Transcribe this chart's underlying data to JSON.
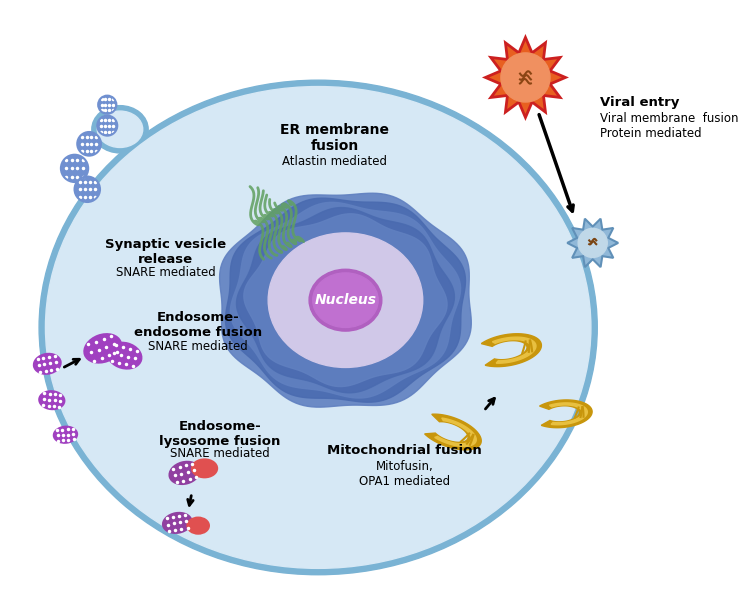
{
  "cell_color": "#d6e8f5",
  "cell_border_color": "#7ab3d4",
  "bg_color": "#ffffff",
  "nucleus_outer_color": "#5a7fc0",
  "nucleus_inner_color": "#c084c4",
  "nucleus_label": "Nucleus",
  "er_label_bold": "ER membrane\nfusion",
  "er_label_normal": "Atlastin mediated",
  "synaptic_label_bold": "Synaptic vesicle\nrelease",
  "synaptic_label_normal": "SNARE mediated",
  "endosome_endo_label_bold": "Endosome-\nendosome fusion",
  "endosome_endo_label_normal": "SNARE mediated",
  "endosome_lyso_label_bold": "Endosome-\nlysosome fusion",
  "endosome_lyso_label_normal": "SNARE mediated",
  "mito_label_bold": "Mitochondrial fusion",
  "mito_label_normal": "Mitofusin,\nOPA1 mediated",
  "viral_label_bold": "Viral entry",
  "viral_label_normal": "Viral membrane  fusion\nProtein mediated",
  "mito_color": "#c8960c",
  "mito_inner_color": "#e8c040",
  "endosome_purple": "#a040c0",
  "lysosome_red": "#e05050",
  "lysosome_purple": "#9040a0",
  "vesicle_blue": "#7090d0",
  "er_green": "#60a060",
  "viral_orange": "#e86020",
  "viral_red_spikes": "#cc2020"
}
